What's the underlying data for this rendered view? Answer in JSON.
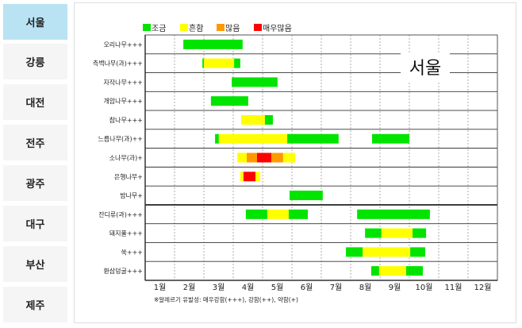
{
  "sidebar": {
    "tabs": [
      {
        "label": "서울",
        "active": true
      },
      {
        "label": "강릉"
      },
      {
        "label": "대전"
      },
      {
        "label": "전주"
      },
      {
        "label": "광주"
      },
      {
        "label": "대구"
      },
      {
        "label": "부산"
      },
      {
        "label": "제주"
      }
    ]
  },
  "chart_data": {
    "type": "bar",
    "subtype": "gantt",
    "overlay_label": "서울",
    "legend": [
      {
        "label": "조금",
        "color": "#00e400"
      },
      {
        "label": "흔함",
        "color": "#ffff00"
      },
      {
        "label": "많음",
        "color": "#ff9900"
      },
      {
        "label": "매우많음",
        "color": "#ff0000"
      }
    ],
    "legend_placement": "top-left",
    "x_ticks": [
      "1월",
      "2월",
      "3월",
      "4월",
      "5월",
      "6월",
      "7월",
      "8월",
      "9월",
      "10월",
      "11월",
      "12월"
    ],
    "x_range_months": [
      1,
      13
    ],
    "grid": true,
    "footnote": "※알레르기 유발성: 매우강함(+++), 강함(++), 약함(+)",
    "categories": [
      "오리나무+++",
      "측백나무(과)+++",
      "자작나무+++",
      "개암나무+++",
      "참나무+++",
      "느릅나무(과)++",
      "소나무(과)+",
      "은행나무+",
      "밤나무+",
      "잔디류(과)+++",
      "돼지풀+++",
      "쑥+++",
      "환삼덩굴+++"
    ],
    "group_divider_after": "밤나무+",
    "rows": [
      [
        {
          "from": 2.3,
          "to": 4.32,
          "level": "조금"
        }
      ],
      [
        {
          "from": 2.95,
          "to": 3.0,
          "level": "조금"
        },
        {
          "from": 3.0,
          "to": 4.03,
          "level": "흔함"
        },
        {
          "from": 4.03,
          "to": 4.24,
          "level": "조금"
        }
      ],
      [
        {
          "from": 3.95,
          "to": 5.51,
          "level": "조금"
        }
      ],
      [
        {
          "from": 3.24,
          "to": 4.51,
          "level": "조금"
        }
      ],
      [
        {
          "from": 4.27,
          "to": 5.08,
          "level": "흔함"
        },
        {
          "from": 5.08,
          "to": 5.35,
          "level": "조금"
        }
      ],
      [
        {
          "from": 3.38,
          "to": 3.51,
          "level": "조금"
        },
        {
          "from": 3.51,
          "to": 5.84,
          "level": "흔함"
        },
        {
          "from": 5.84,
          "to": 7.59,
          "level": "조금"
        },
        {
          "from": 8.73,
          "to": 10.0,
          "level": "조금"
        }
      ],
      [
        {
          "from": 4.14,
          "to": 4.46,
          "level": "흔함"
        },
        {
          "from": 4.46,
          "to": 4.81,
          "level": "많음"
        },
        {
          "from": 4.81,
          "to": 5.3,
          "level": "매우많음"
        },
        {
          "from": 5.3,
          "to": 5.7,
          "level": "많음"
        },
        {
          "from": 5.7,
          "to": 6.11,
          "level": "흔함"
        }
      ],
      [
        {
          "from": 4.24,
          "to": 4.35,
          "level": "흔함"
        },
        {
          "from": 4.35,
          "to": 4.76,
          "level": "매우많음"
        },
        {
          "from": 4.76,
          "to": 4.92,
          "level": "흔함"
        }
      ],
      [
        {
          "from": 5.92,
          "to": 7.05,
          "level": "조금"
        }
      ],
      [
        {
          "from": 4.43,
          "to": 5.16,
          "level": "조금"
        },
        {
          "from": 5.16,
          "to": 5.89,
          "level": "흔함"
        },
        {
          "from": 5.89,
          "to": 6.54,
          "level": "조금"
        },
        {
          "from": 8.22,
          "to": 10.7,
          "level": "조금"
        }
      ],
      [
        {
          "from": 8.49,
          "to": 9.05,
          "level": "조금"
        },
        {
          "from": 9.05,
          "to": 10.11,
          "level": "흔함"
        },
        {
          "from": 10.11,
          "to": 10.57,
          "level": "조금"
        }
      ],
      [
        {
          "from": 7.84,
          "to": 8.41,
          "level": "조금"
        },
        {
          "from": 8.41,
          "to": 10.03,
          "level": "흔함"
        },
        {
          "from": 10.03,
          "to": 10.54,
          "level": "조금"
        }
      ],
      [
        {
          "from": 8.7,
          "to": 8.97,
          "level": "조금"
        },
        {
          "from": 8.97,
          "to": 9.89,
          "level": "흔함"
        },
        {
          "from": 9.89,
          "to": 10.46,
          "level": "조금"
        }
      ]
    ]
  }
}
